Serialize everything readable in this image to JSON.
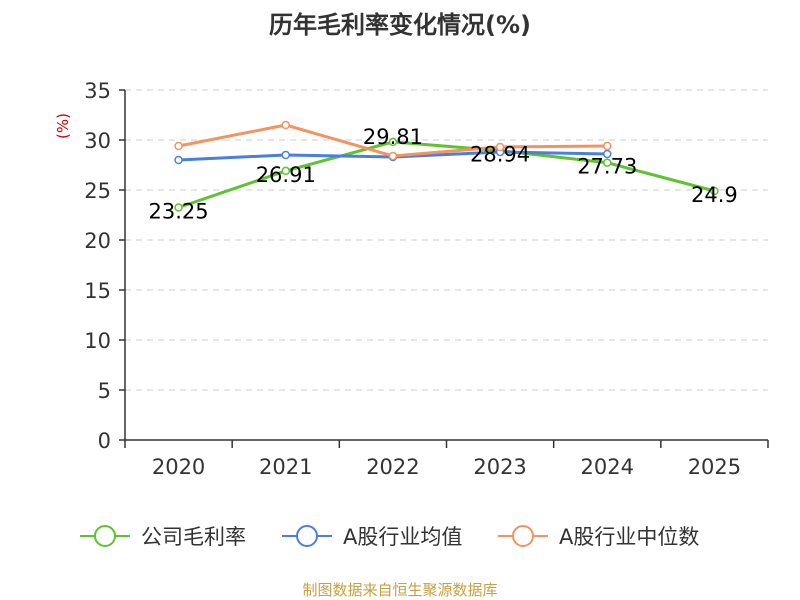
{
  "chart_data": {
    "type": "line",
    "title": "历年毛利率变化情况(%)",
    "ylabel": "(%)",
    "xlabel": "",
    "categories": [
      "2020",
      "2021",
      "2022",
      "2023",
      "2024",
      "2025"
    ],
    "ylim": [
      0,
      35
    ],
    "yticks": [
      0,
      5,
      10,
      15,
      20,
      25,
      30,
      35
    ],
    "grid": true,
    "legend_position": "bottom",
    "series": [
      {
        "name": "公司毛利率",
        "color": "#5cc42e",
        "values": [
          23.25,
          26.91,
          29.81,
          28.94,
          27.73,
          24.9
        ],
        "labels": [
          "23.25",
          "26.91",
          "29.81",
          "28.94",
          "27.73",
          "24.9"
        ]
      },
      {
        "name": "A股行业均值",
        "color": "#4a7fe0",
        "values": [
          28.0,
          28.5,
          28.3,
          28.8,
          28.6,
          null
        ]
      },
      {
        "name": "A股行业中位数",
        "color": "#f5925e",
        "values": [
          29.4,
          31.5,
          28.4,
          29.3,
          29.4,
          null
        ]
      }
    ],
    "source": "制图数据来自恒生聚源数据库"
  },
  "colors": {
    "ylabel": "#cc0000",
    "source": "#c8a040",
    "axis": "#333333",
    "grid": "#cccccc"
  }
}
